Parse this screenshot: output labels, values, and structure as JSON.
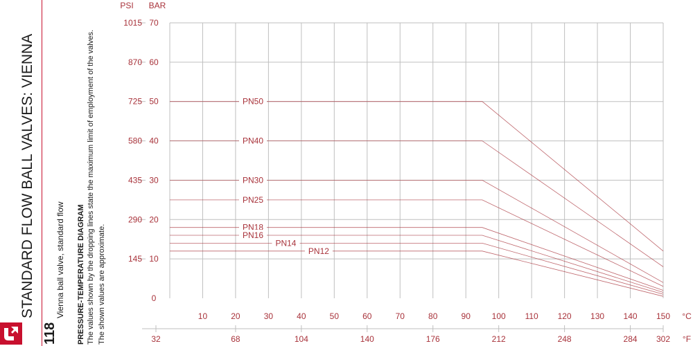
{
  "sidebar": {
    "title": "STANDARD FLOW BALL VALVES: VIENNA",
    "page_number": "118",
    "subtitle": "Vienna ball valve, standard flow",
    "heading": "PRESSURE-TEMPERATURE DIAGRAM",
    "note_line1": "The values shown by the dropping lines state the maximum limit of employment of the valves.",
    "note_line2": "The shown values are approximate.",
    "logo_icon": "brand-logo-icon",
    "accent_color": "#c8102e"
  },
  "chart_data": {
    "type": "line",
    "y_unit_left": "PSI",
    "y_unit_right": "BAR",
    "x_unit_celsius": "°C",
    "x_unit_fahrenheit": "°F",
    "y_bar_ticks": [
      "70",
      "60",
      "50",
      "40",
      "30",
      "20",
      "10",
      "0"
    ],
    "y_psi_ticks": [
      "1015",
      "870",
      "725",
      "580",
      "435",
      "290",
      "145"
    ],
    "x_celsius_ticks": [
      "10",
      "20",
      "30",
      "40",
      "50",
      "60",
      "70",
      "80",
      "90",
      "100",
      "110",
      "120",
      "130",
      "140",
      "150"
    ],
    "x_fahrenheit_ticks": [
      "32",
      "68",
      "104",
      "140",
      "176",
      "212",
      "248",
      "284",
      "302"
    ],
    "xlim": [
      0,
      150
    ],
    "ylim": [
      0,
      70
    ],
    "grid": true,
    "line_color": "#a8323a",
    "grid_color": "#bfbfbf",
    "series": [
      {
        "name": "PN50",
        "label_at": 0,
        "points": [
          [
            0,
            50
          ],
          [
            95,
            50
          ],
          [
            150,
            12
          ]
        ]
      },
      {
        "name": "PN40",
        "label_at": 0,
        "points": [
          [
            0,
            40
          ],
          [
            95,
            40
          ],
          [
            150,
            8
          ]
        ]
      },
      {
        "name": "PN30",
        "label_at": 0,
        "points": [
          [
            0,
            30
          ],
          [
            95,
            30
          ],
          [
            150,
            4
          ]
        ]
      },
      {
        "name": "PN25",
        "label_at": 0,
        "points": [
          [
            0,
            25
          ],
          [
            95,
            25
          ],
          [
            150,
            3
          ]
        ]
      },
      {
        "name": "PN18",
        "label_at": 0,
        "points": [
          [
            0,
            18
          ],
          [
            95,
            18
          ],
          [
            150,
            2
          ]
        ]
      },
      {
        "name": "PN16",
        "label_at": 0,
        "points": [
          [
            0,
            16
          ],
          [
            95,
            16
          ],
          [
            150,
            1.5
          ]
        ]
      },
      {
        "name": "PN14",
        "label_at": 10,
        "points": [
          [
            0,
            14
          ],
          [
            95,
            14
          ],
          [
            150,
            1
          ]
        ]
      },
      {
        "name": "PN12",
        "label_at": 20,
        "points": [
          [
            0,
            12
          ],
          [
            95,
            12
          ],
          [
            150,
            0.5
          ]
        ]
      }
    ]
  }
}
